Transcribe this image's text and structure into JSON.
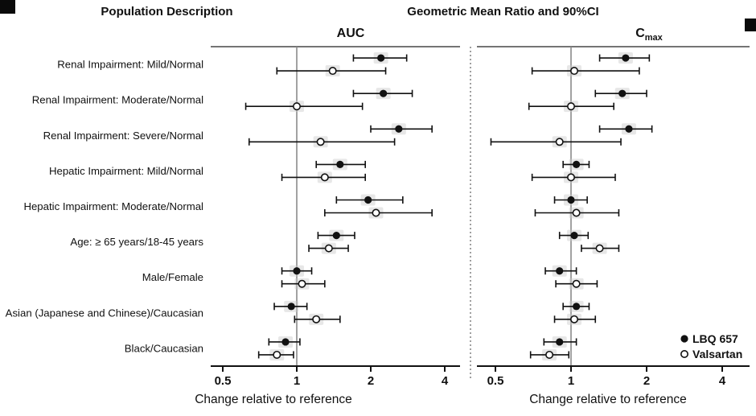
{
  "chart_data": {
    "type": "scatter",
    "subtype": "forest-plot",
    "header_left": "Population Description",
    "header_right": "Geometric Mean Ratio and 90%CI",
    "x_scale": "log",
    "x_tick_labels": [
      "0.5",
      "1",
      "2",
      "4"
    ],
    "x_tick_values": [
      0.5,
      1,
      2,
      4
    ],
    "xlim": [
      0.45,
      4.5
    ],
    "reference_value": 1,
    "xlabel": "Change relative to reference",
    "grid": false,
    "legend_position": "bottom-right",
    "categories": [
      "Renal Impairment: Mild/Normal",
      "Renal Impairment: Moderate/Normal",
      "Renal Impairment: Severe/Normal",
      "Hepatic Impairment: Mild/Normal",
      "Hepatic Impairment: Moderate/Normal",
      "Age: ≥ 65 years/18-45 years",
      "Male/Female",
      "Asian (Japanese and Chinese)/Caucasian",
      "Black/Caucasian"
    ],
    "legend": [
      {
        "label": "LBQ 657",
        "marker": "filled-circle"
      },
      {
        "label": "Valsartan",
        "marker": "open-circle"
      }
    ],
    "panels": [
      {
        "title": "AUC",
        "title_sub": "",
        "series": [
          {
            "name": "LBQ 657",
            "marker": "filled",
            "points": [
              {
                "est": 2.2,
                "lo": 1.7,
                "hi": 2.8
              },
              {
                "est": 2.25,
                "lo": 1.7,
                "hi": 2.95
              },
              {
                "est": 2.6,
                "lo": 2.0,
                "hi": 3.55
              },
              {
                "est": 1.5,
                "lo": 1.2,
                "hi": 1.9
              },
              {
                "est": 1.95,
                "lo": 1.45,
                "hi": 2.7
              },
              {
                "est": 1.45,
                "lo": 1.22,
                "hi": 1.72
              },
              {
                "est": 1.0,
                "lo": 0.87,
                "hi": 1.15
              },
              {
                "est": 0.95,
                "lo": 0.81,
                "hi": 1.1
              },
              {
                "est": 0.9,
                "lo": 0.77,
                "hi": 1.03
              }
            ]
          },
          {
            "name": "Valsartan",
            "marker": "open",
            "points": [
              {
                "est": 1.4,
                "lo": 0.83,
                "hi": 2.3
              },
              {
                "est": 1.0,
                "lo": 0.62,
                "hi": 1.85
              },
              {
                "est": 1.25,
                "lo": 0.64,
                "hi": 2.5
              },
              {
                "est": 1.3,
                "lo": 0.87,
                "hi": 1.9
              },
              {
                "est": 2.1,
                "lo": 1.3,
                "hi": 3.55
              },
              {
                "est": 1.35,
                "lo": 1.12,
                "hi": 1.62
              },
              {
                "est": 1.05,
                "lo": 0.87,
                "hi": 1.3
              },
              {
                "est": 1.2,
                "lo": 0.98,
                "hi": 1.5
              },
              {
                "est": 0.83,
                "lo": 0.7,
                "hi": 0.97
              }
            ]
          }
        ]
      },
      {
        "title": "C",
        "title_sub": "max",
        "series": [
          {
            "name": "LBQ 657",
            "marker": "filled",
            "points": [
              {
                "est": 1.65,
                "lo": 1.3,
                "hi": 2.05
              },
              {
                "est": 1.6,
                "lo": 1.25,
                "hi": 2.0
              },
              {
                "est": 1.7,
                "lo": 1.3,
                "hi": 2.1
              },
              {
                "est": 1.05,
                "lo": 0.93,
                "hi": 1.18
              },
              {
                "est": 1.0,
                "lo": 0.86,
                "hi": 1.16
              },
              {
                "est": 1.03,
                "lo": 0.9,
                "hi": 1.17
              },
              {
                "est": 0.9,
                "lo": 0.79,
                "hi": 1.05
              },
              {
                "est": 1.05,
                "lo": 0.93,
                "hi": 1.18
              },
              {
                "est": 0.9,
                "lo": 0.78,
                "hi": 1.05
              }
            ]
          },
          {
            "name": "Valsartan",
            "marker": "open",
            "points": [
              {
                "est": 1.03,
                "lo": 0.7,
                "hi": 1.87
              },
              {
                "est": 1.0,
                "lo": 0.68,
                "hi": 1.48
              },
              {
                "est": 0.9,
                "lo": 0.48,
                "hi": 1.58
              },
              {
                "est": 1.0,
                "lo": 0.7,
                "hi": 1.5
              },
              {
                "est": 1.05,
                "lo": 0.72,
                "hi": 1.55
              },
              {
                "est": 1.3,
                "lo": 1.1,
                "hi": 1.55
              },
              {
                "est": 1.05,
                "lo": 0.87,
                "hi": 1.27
              },
              {
                "est": 1.03,
                "lo": 0.86,
                "hi": 1.25
              },
              {
                "est": 0.82,
                "lo": 0.69,
                "hi": 0.98
              }
            ]
          }
        ]
      }
    ]
  }
}
